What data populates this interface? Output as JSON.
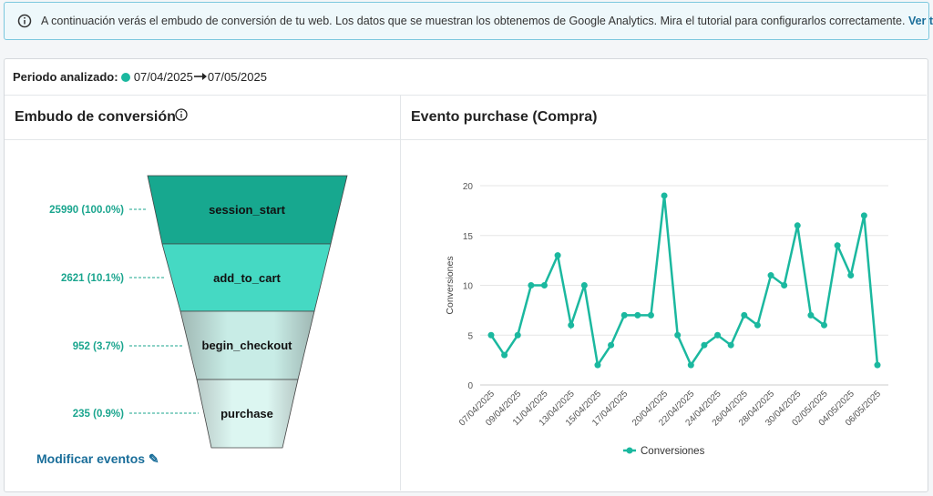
{
  "info_banner": {
    "text": "A continuación verás el embudo de conversión de tu web. Los datos que se muestran los obtenemos de Google Analytics. Mira el tutorial para configurarlos correctamente.",
    "link": "Ver tutorial"
  },
  "period": {
    "label": "Periodo analizado:",
    "start": "07/04/2025",
    "end": "07/05/2025"
  },
  "funnel": {
    "title": "Embudo de conversión",
    "edit_link": "Modificar eventos",
    "stages": [
      {
        "name": "session_start",
        "label": "25990 (100.0%)"
      },
      {
        "name": "add_to_cart",
        "label": "2621 (10.1%)"
      },
      {
        "name": "begin_checkout",
        "label": "952 (3.7%)"
      },
      {
        "name": "purchase",
        "label": "235 (0.9%)"
      }
    ]
  },
  "chart_data": {
    "type": "line",
    "title": "Evento purchase (Compra)",
    "y_label": "Conversiones",
    "categories": [
      "07/04/2025",
      null,
      "09/04/2025",
      null,
      "11/04/2025",
      null,
      "13/04/2025",
      null,
      "15/04/2025",
      null,
      "17/04/2025",
      null,
      null,
      "20/04/2025",
      null,
      "22/04/2025",
      null,
      "24/04/2025",
      null,
      "26/04/2025",
      null,
      "28/04/2025",
      null,
      "30/04/2025",
      null,
      "02/05/2025",
      null,
      "04/05/2025",
      null,
      "06/05/2025"
    ],
    "series": [
      {
        "name": "Conversiones",
        "color": "#1bb89f",
        "values": [
          5,
          3,
          5,
          10,
          10,
          13,
          6,
          10,
          2,
          4,
          7,
          7,
          7,
          19,
          5,
          2,
          4,
          5,
          4,
          7,
          6,
          11,
          10,
          16,
          7,
          6,
          14,
          11,
          17,
          2
        ]
      }
    ],
    "ylim": [
      0,
      20
    ],
    "yticks": [
      0,
      5,
      10,
      15,
      20
    ],
    "grid": true,
    "legend": "bottom"
  }
}
